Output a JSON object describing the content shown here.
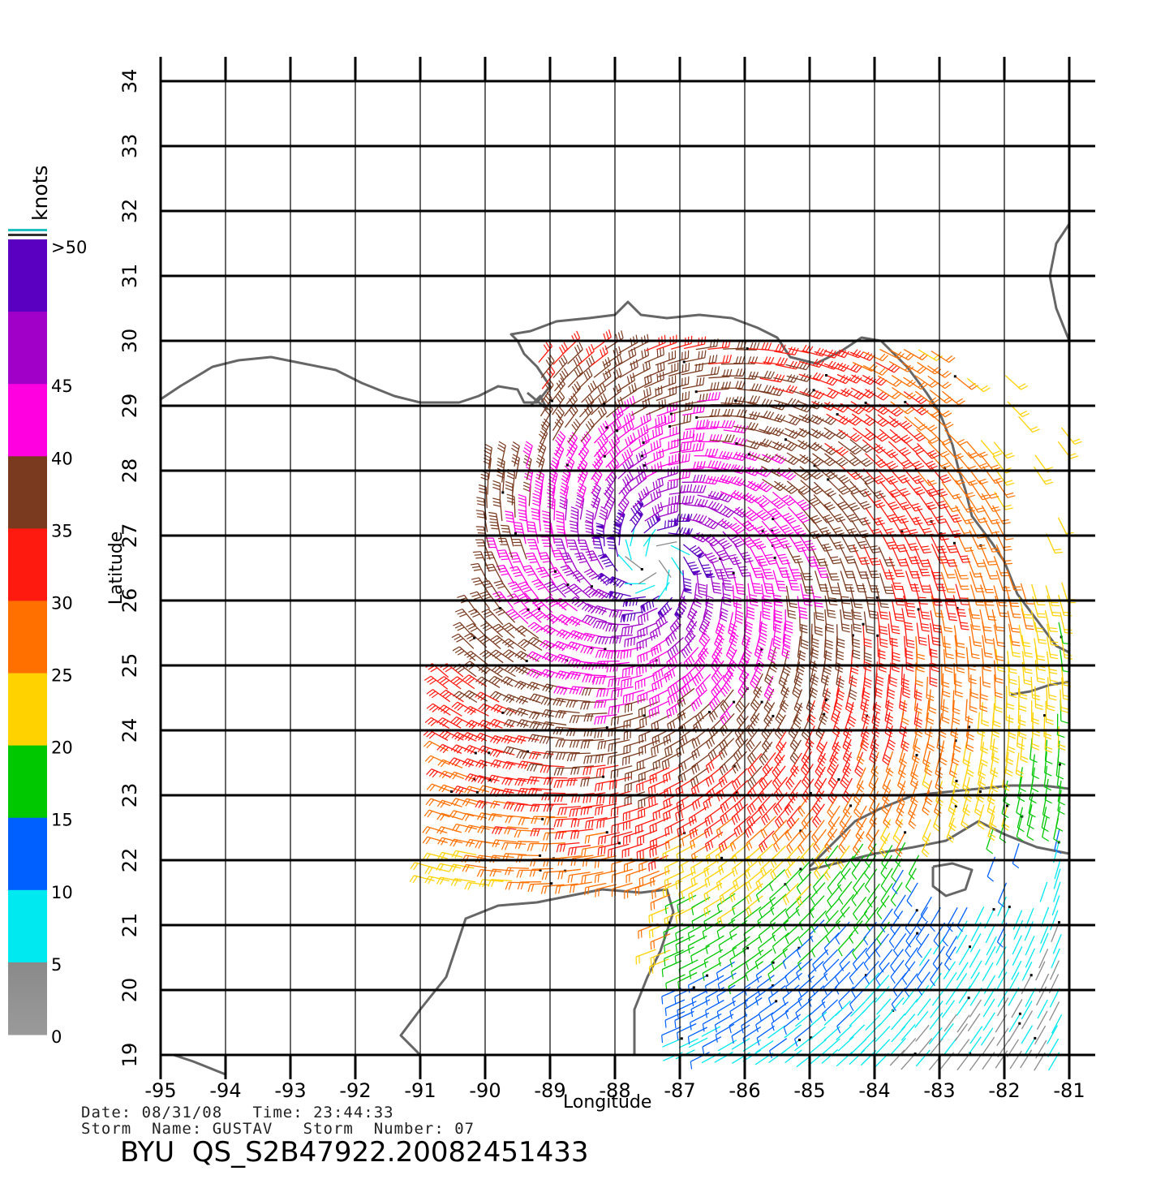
{
  "map": {
    "lon_range": [
      -95,
      -81
    ],
    "lat_range": [
      19,
      34
    ],
    "lon_ticks": [
      "-95",
      "-94",
      "-93",
      "-92",
      "-91",
      "-90",
      "-89",
      "-88",
      "-87",
      "-86",
      "-85",
      "-84",
      "-83",
      "-82",
      "-81"
    ],
    "lat_ticks": [
      "19",
      "20",
      "21",
      "22",
      "23",
      "24",
      "25",
      "26",
      "27",
      "28",
      "29",
      "30",
      "31",
      "32",
      "33",
      "34"
    ],
    "xlabel": "Longitude",
    "ylabel": "Latitude",
    "storm_center": {
      "lon": -87.4,
      "lat": 26.6
    },
    "coast_color": "#666666"
  },
  "colorbar": {
    "unit_label": "knots",
    "ticks": [
      "0",
      "5",
      "10",
      "15",
      "20",
      "25",
      "30",
      "35",
      "40",
      "45",
      ">50"
    ],
    "bins": [
      {
        "min": 0,
        "max": 5,
        "color": "#8a8a8a"
      },
      {
        "min": 5,
        "max": 10,
        "color": "#00e8f0"
      },
      {
        "min": 10,
        "max": 15,
        "color": "#0060ff"
      },
      {
        "min": 15,
        "max": 20,
        "color": "#00c800"
      },
      {
        "min": 20,
        "max": 25,
        "color": "#ffd200"
      },
      {
        "min": 25,
        "max": 30,
        "color": "#ff7000"
      },
      {
        "min": 30,
        "max": 35,
        "color": "#ff1a10"
      },
      {
        "min": 35,
        "max": 40,
        "color": "#7a3a20"
      },
      {
        "min": 40,
        "max": 45,
        "color": "#ff00e0"
      },
      {
        "min": 45,
        "max": 50,
        "color": "#a000c8"
      },
      {
        "min": 50,
        "max": 60,
        "color": "#5a00c0"
      }
    ]
  },
  "footer": {
    "date_line": "Date: 08/31/08   Time: 23:44:33",
    "storm_line": "Storm  Name: GUSTAV   Storm  Number: 07",
    "product_id": "BYU  QS_S2B47922.20082451433"
  }
}
